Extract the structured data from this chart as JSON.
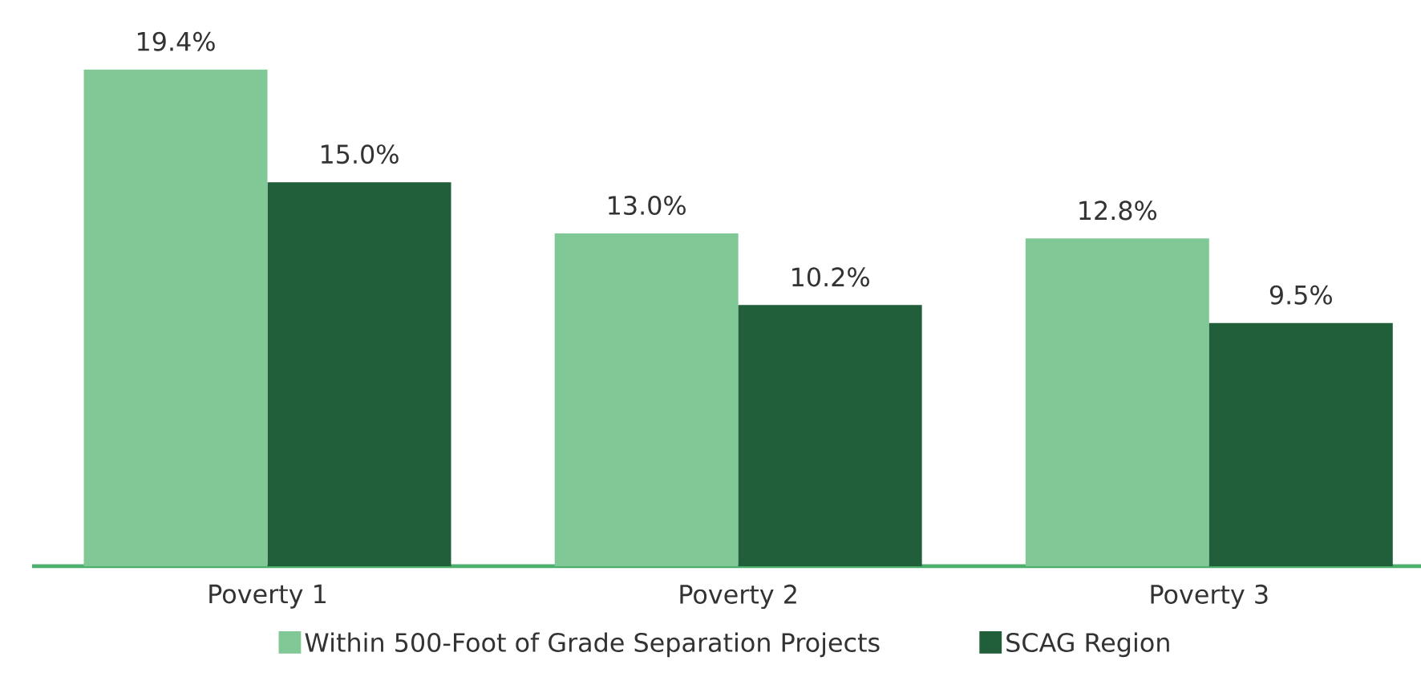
{
  "chart_data": {
    "type": "bar",
    "categories": [
      "Poverty 1",
      "Poverty 2",
      "Poverty 3"
    ],
    "series": [
      {
        "name": "Within 500-Foot of Grade Separation Projects",
        "color": "#80c997",
        "values": [
          19.4,
          13.0,
          12.8
        ],
        "value_labels": [
          "19.4%",
          "13.0%",
          "12.8%"
        ]
      },
      {
        "name": "SCAG Region",
        "color": "#215e3a",
        "values": [
          15.0,
          10.2,
          9.5
        ],
        "value_labels": [
          "15.0%",
          "10.2%",
          "9.5%"
        ]
      }
    ],
    "legend": "bottom",
    "grid": false
  }
}
